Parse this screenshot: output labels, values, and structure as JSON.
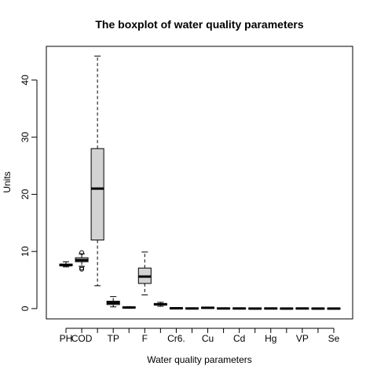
{
  "chart_data": {
    "type": "boxplot",
    "title": "The boxplot of water quality parameters",
    "xlabel": "Water quality parameters",
    "ylabel": "Units",
    "ylim": [
      -1.8,
      45.9
    ],
    "yticks": [
      0,
      10,
      20,
      30,
      40
    ],
    "grid": false,
    "legend": "none",
    "box_fill": "#d3d3d3",
    "line_color": "#000000",
    "categories": [
      "PH",
      "COD",
      "",
      "TP",
      "",
      "F",
      "",
      "Cr6.",
      "",
      "Cu",
      "",
      "Cd",
      "",
      "Hg",
      "",
      "VP",
      "",
      "Se"
    ],
    "boxes": [
      {
        "whisker_low": 7.3,
        "q1": 7.5,
        "median": 7.6,
        "q3": 7.8,
        "whisker_high": 8.2,
        "outliers": []
      },
      {
        "whisker_low": 7.4,
        "q1": 8.2,
        "median": 8.5,
        "q3": 8.9,
        "whisker_high": 9.6,
        "outliers": [
          6.9,
          7.1,
          9.8
        ]
      },
      {
        "whisker_low": 4.0,
        "q1": 12.0,
        "median": 21.0,
        "q3": 28.0,
        "whisker_high": 44.2,
        "outliers": []
      },
      {
        "whisker_low": 0.3,
        "q1": 0.7,
        "median": 1.0,
        "q3": 1.3,
        "whisker_high": 2.1,
        "outliers": []
      },
      {
        "whisker_low": 0.05,
        "q1": 0.15,
        "median": 0.2,
        "q3": 0.25,
        "whisker_high": 0.35,
        "outliers": []
      },
      {
        "whisker_low": 2.4,
        "q1": 4.4,
        "median": 5.6,
        "q3": 7.1,
        "whisker_high": 9.9,
        "outliers": []
      },
      {
        "whisker_low": 0.4,
        "q1": 0.6,
        "median": 0.75,
        "q3": 0.9,
        "whisker_high": 1.1,
        "outliers": []
      },
      {
        "whisker_low": -0.05,
        "q1": 0.0,
        "median": 0.05,
        "q3": 0.1,
        "whisker_high": 0.2,
        "outliers": []
      },
      {
        "whisker_low": -0.02,
        "q1": 0.0,
        "median": 0.02,
        "q3": 0.05,
        "whisker_high": 0.08,
        "outliers": []
      },
      {
        "whisker_low": 0.05,
        "q1": 0.1,
        "median": 0.15,
        "q3": 0.2,
        "whisker_high": 0.25,
        "outliers": []
      },
      {
        "whisker_low": -0.02,
        "q1": 0.0,
        "median": 0.02,
        "q3": 0.04,
        "whisker_high": 0.06,
        "outliers": []
      },
      {
        "whisker_low": -0.02,
        "q1": 0.0,
        "median": 0.02,
        "q3": 0.04,
        "whisker_high": 0.06,
        "outliers": []
      },
      {
        "whisker_low": -0.05,
        "q1": -0.02,
        "median": 0.0,
        "q3": 0.03,
        "whisker_high": 0.08,
        "outliers": []
      },
      {
        "whisker_low": -0.02,
        "q1": 0.0,
        "median": 0.02,
        "q3": 0.04,
        "whisker_high": 0.06,
        "outliers": []
      },
      {
        "whisker_low": -0.05,
        "q1": -0.02,
        "median": 0.0,
        "q3": 0.03,
        "whisker_high": 0.08,
        "outliers": []
      },
      {
        "whisker_low": -0.02,
        "q1": 0.0,
        "median": 0.02,
        "q3": 0.04,
        "whisker_high": 0.06,
        "outliers": []
      },
      {
        "whisker_low": -0.05,
        "q1": -0.02,
        "median": 0.0,
        "q3": 0.03,
        "whisker_high": 0.08,
        "outliers": []
      },
      {
        "whisker_low": -0.05,
        "q1": -0.02,
        "median": 0.0,
        "q3": 0.03,
        "whisker_high": 0.08,
        "outliers": []
      }
    ]
  }
}
